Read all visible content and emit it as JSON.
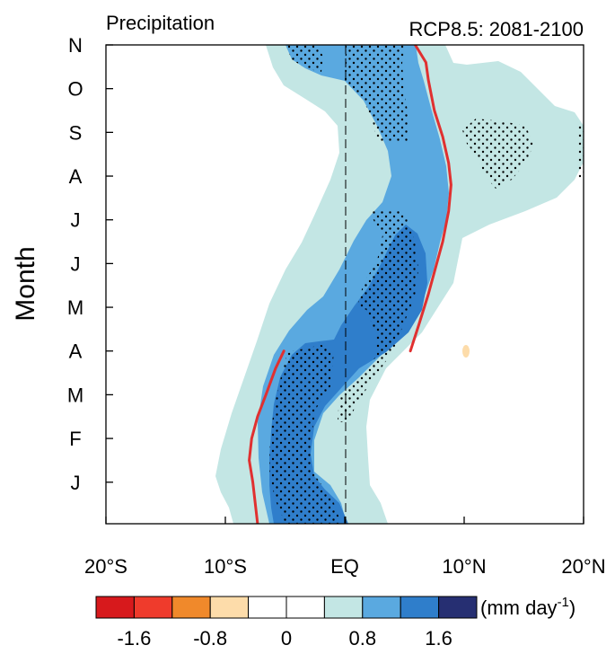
{
  "chart_data": {
    "type": "heatmap",
    "title": "Precipitation",
    "subtitle": "RCP8.5: 2081-2100",
    "ylabel": "Month",
    "xlabel": "",
    "x_ticks": [
      "20°S",
      "10°S",
      "EQ",
      "10°N",
      "20°N"
    ],
    "x_tick_values": [
      -20,
      -10,
      0,
      10,
      20
    ],
    "xlim": [
      -20,
      20
    ],
    "y_ticks": [
      "J",
      "F",
      "M",
      "A",
      "M",
      "J",
      "J",
      "A",
      "S",
      "O",
      "N"
    ],
    "y_tick_values": [
      1,
      2,
      3,
      4,
      5,
      6,
      7,
      8,
      9,
      10,
      11
    ],
    "ylim": [
      0.05,
      11.0
    ],
    "equator_line_x": 0,
    "colorbar": {
      "unit_label": "(mm day",
      "unit_exp": "-1",
      "unit_close": ")",
      "tick_labels": [
        "-1.6",
        "-0.8",
        "0",
        "0.8",
        "1.6"
      ],
      "tick_values": [
        -1.6,
        -0.8,
        0,
        0.8,
        1.6
      ],
      "levels": [
        -2.0,
        -1.6,
        -1.2,
        -0.8,
        -0.4,
        0,
        0.4,
        0.8,
        1.2,
        1.6,
        2.0
      ],
      "colors": [
        "#d7191c",
        "#ef3b2c",
        "#f0892b",
        "#fddcaa",
        "#ffffff",
        "#ffffff",
        "#c3e6e4",
        "#5aa9e0",
        "#2f7ecb",
        "#262f72"
      ]
    },
    "contour_levels": [
      {
        "name": "0.4-0.8",
        "min": 0.4,
        "color": "#c3e6e4"
      },
      {
        "name": "0.8-1.2",
        "min": 0.8,
        "color": "#5aa9e0"
      },
      {
        "name": "1.2-1.6",
        "min": 1.2,
        "color": "#2f7ecb"
      }
    ],
    "series": [
      {
        "name": "",
        "color": "#e03030",
        "lat": [
          -5.1,
          -5.8,
          -6.6,
          -7.3,
          -7.8,
          -8.0,
          -7.7,
          -7.3
        ],
        "month": [
          4.0,
          3.6,
          3.0,
          2.5,
          2.0,
          1.5,
          1.0,
          0.05
        ]
      },
      {
        "name": "",
        "color": "#e03030",
        "lat": [
          5.5,
          6.2,
          7.0,
          7.7,
          8.2,
          8.7,
          8.9,
          8.7,
          8.2,
          7.5,
          7.0,
          6.8,
          5.9
        ],
        "month": [
          4.0,
          4.6,
          5.3,
          6.0,
          6.5,
          7.2,
          7.8,
          8.3,
          8.9,
          9.5,
          10.2,
          10.6,
          11.0
        ]
      }
    ]
  }
}
